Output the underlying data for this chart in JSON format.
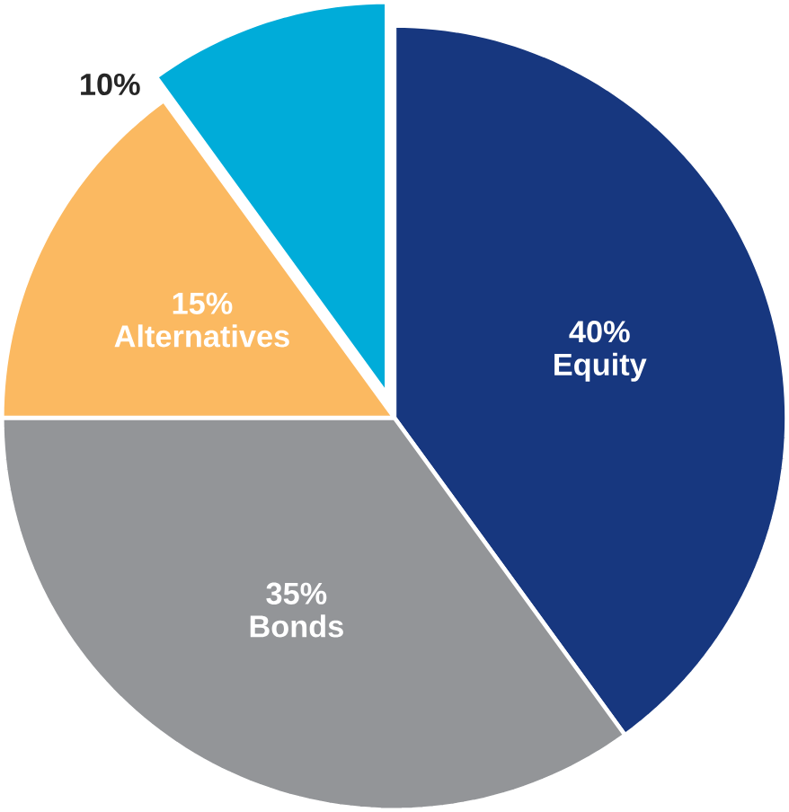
{
  "chart_data": {
    "type": "pie",
    "categories": [
      "Equity",
      "Bonds",
      "Alternatives",
      null
    ],
    "values": [
      40,
      35,
      15,
      10
    ],
    "value_labels": [
      "40%",
      "35%",
      "15%",
      "10%"
    ],
    "colors": [
      "#17377f",
      "#939598",
      "#fbb961",
      "#00acd9"
    ]
  }
}
